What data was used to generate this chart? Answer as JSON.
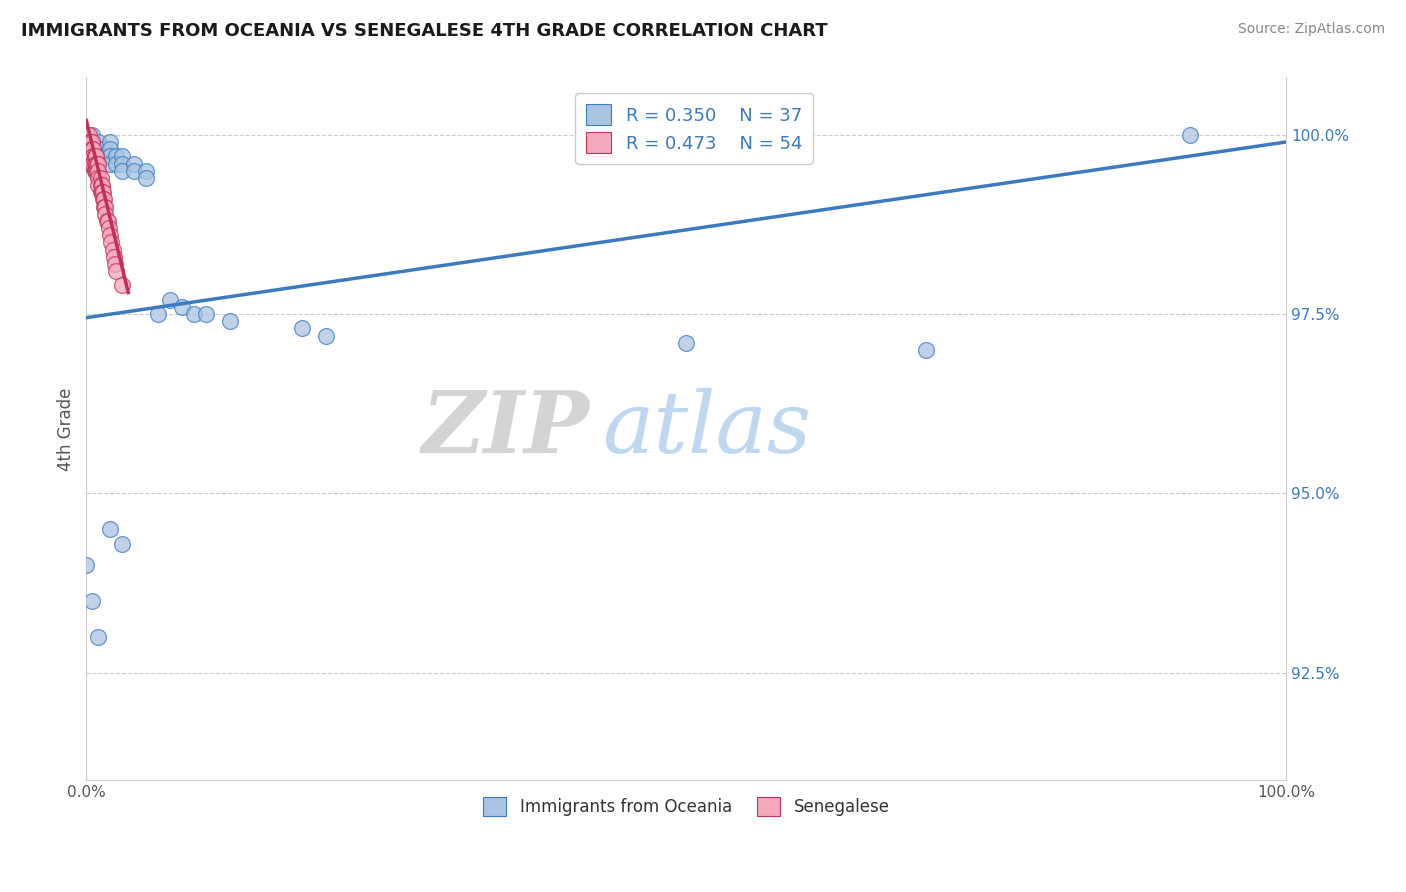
{
  "title": "IMMIGRANTS FROM OCEANIA VS SENEGALESE 4TH GRADE CORRELATION CHART",
  "source": "Source: ZipAtlas.com",
  "ylabel": "4th Grade",
  "legend_label_1": "Immigrants from Oceania",
  "legend_label_2": "Senegalese",
  "R1": 0.35,
  "N1": 37,
  "R2": 0.473,
  "N2": 54,
  "color1": "#aac4e2",
  "color2": "#f4a8bc",
  "line_color1": "#3a7abf",
  "line_color2": "#c0305a",
  "watermark_zip": "ZIP",
  "watermark_atlas": "atlas",
  "xmin": 0.0,
  "xmax": 1.0,
  "ymin": 0.91,
  "ymax": 1.008,
  "yticks": [
    0.925,
    0.95,
    0.975,
    1.0
  ],
  "ytick_labels": [
    "92.5%",
    "95.0%",
    "97.5%",
    "100.0%"
  ],
  "xticks": [
    0.0,
    0.25,
    0.5,
    0.75,
    1.0
  ],
  "xtick_labels": [
    "0.0%",
    "",
    "",
    "",
    "100.0%"
  ],
  "oceania_x": [
    0.005,
    0.005,
    0.005,
    0.01,
    0.01,
    0.01,
    0.015,
    0.015,
    0.02,
    0.02,
    0.02,
    0.02,
    0.025,
    0.025,
    0.03,
    0.03,
    0.03,
    0.04,
    0.04,
    0.05,
    0.05,
    0.06,
    0.07,
    0.08,
    0.09,
    0.1,
    0.12,
    0.18,
    0.2,
    0.5,
    0.7,
    0.92,
    0.0,
    0.005,
    0.01,
    0.02,
    0.03
  ],
  "oceania_y": [
    1.0,
    0.999,
    0.998,
    0.999,
    0.998,
    0.997,
    0.998,
    0.997,
    0.999,
    0.998,
    0.997,
    0.996,
    0.997,
    0.996,
    0.997,
    0.996,
    0.995,
    0.996,
    0.995,
    0.995,
    0.994,
    0.975,
    0.977,
    0.976,
    0.975,
    0.975,
    0.974,
    0.973,
    0.972,
    0.971,
    0.97,
    1.0,
    0.94,
    0.935,
    0.93,
    0.945,
    0.943
  ],
  "senegalese_x": [
    0.001,
    0.001,
    0.001,
    0.002,
    0.002,
    0.002,
    0.002,
    0.003,
    0.003,
    0.003,
    0.003,
    0.004,
    0.004,
    0.004,
    0.005,
    0.005,
    0.005,
    0.005,
    0.006,
    0.006,
    0.006,
    0.007,
    0.007,
    0.007,
    0.008,
    0.008,
    0.008,
    0.009,
    0.009,
    0.01,
    0.01,
    0.01,
    0.01,
    0.012,
    0.012,
    0.012,
    0.013,
    0.013,
    0.014,
    0.014,
    0.015,
    0.015,
    0.016,
    0.016,
    0.017,
    0.018,
    0.019,
    0.02,
    0.021,
    0.022,
    0.023,
    0.024,
    0.025,
    0.03
  ],
  "senegalese_y": [
    1.0,
    0.999,
    0.998,
    1.0,
    0.999,
    0.998,
    0.997,
    0.999,
    0.998,
    0.997,
    0.996,
    0.999,
    0.998,
    0.997,
    0.999,
    0.998,
    0.997,
    0.996,
    0.998,
    0.997,
    0.996,
    0.997,
    0.996,
    0.995,
    0.997,
    0.996,
    0.995,
    0.996,
    0.995,
    0.996,
    0.995,
    0.994,
    0.993,
    0.994,
    0.993,
    0.992,
    0.993,
    0.992,
    0.992,
    0.991,
    0.991,
    0.99,
    0.99,
    0.989,
    0.988,
    0.988,
    0.987,
    0.986,
    0.985,
    0.984,
    0.983,
    0.982,
    0.981,
    0.979
  ],
  "blue_line_x": [
    0.0,
    1.0
  ],
  "blue_line_y": [
    0.9745,
    0.999
  ],
  "pink_line_x": [
    0.0,
    0.035
  ],
  "pink_line_y": [
    1.002,
    0.978
  ]
}
